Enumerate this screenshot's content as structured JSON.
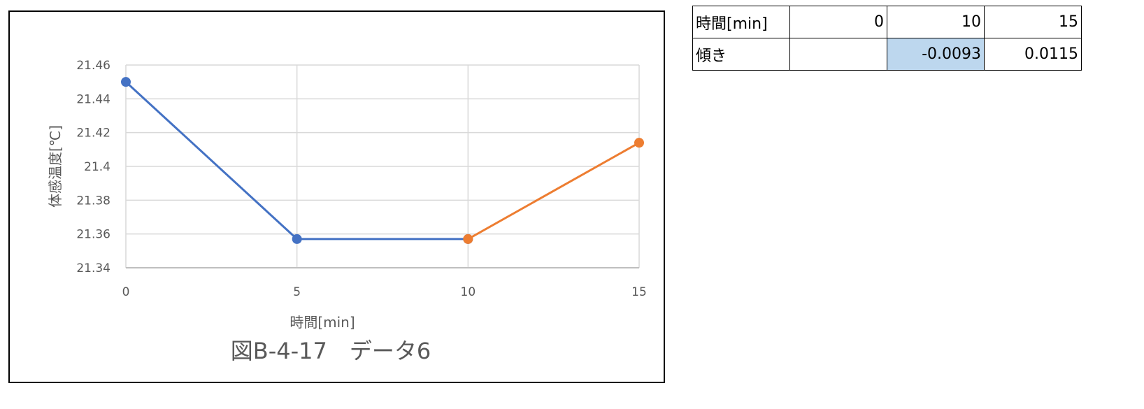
{
  "chart_data": {
    "type": "line",
    "caption": "図B-4-17　データ6",
    "xlabel": "時間[min]",
    "ylabel": "体感温度[℃]",
    "xlim": [
      0,
      15
    ],
    "ylim": [
      21.34,
      21.46
    ],
    "xticks": [
      "0",
      "5",
      "10",
      "15"
    ],
    "yticks": [
      "21.34",
      "21.36",
      "21.38",
      "21.4",
      "21.42",
      "21.44",
      "21.46"
    ],
    "grid": true,
    "series": [
      {
        "color": "#4472c4",
        "x": [
          0,
          5,
          10
        ],
        "y": [
          21.45,
          21.357,
          21.357
        ]
      },
      {
        "color": "#ed7d31",
        "x": [
          10,
          15
        ],
        "y": [
          21.357,
          21.414
        ]
      }
    ]
  },
  "table": {
    "rows": [
      [
        "時間[min]",
        "0",
        "10",
        "15"
      ],
      [
        "傾き",
        "",
        "-0.0093",
        "0.0115"
      ]
    ],
    "highlight_color": "#bdd7ee"
  }
}
